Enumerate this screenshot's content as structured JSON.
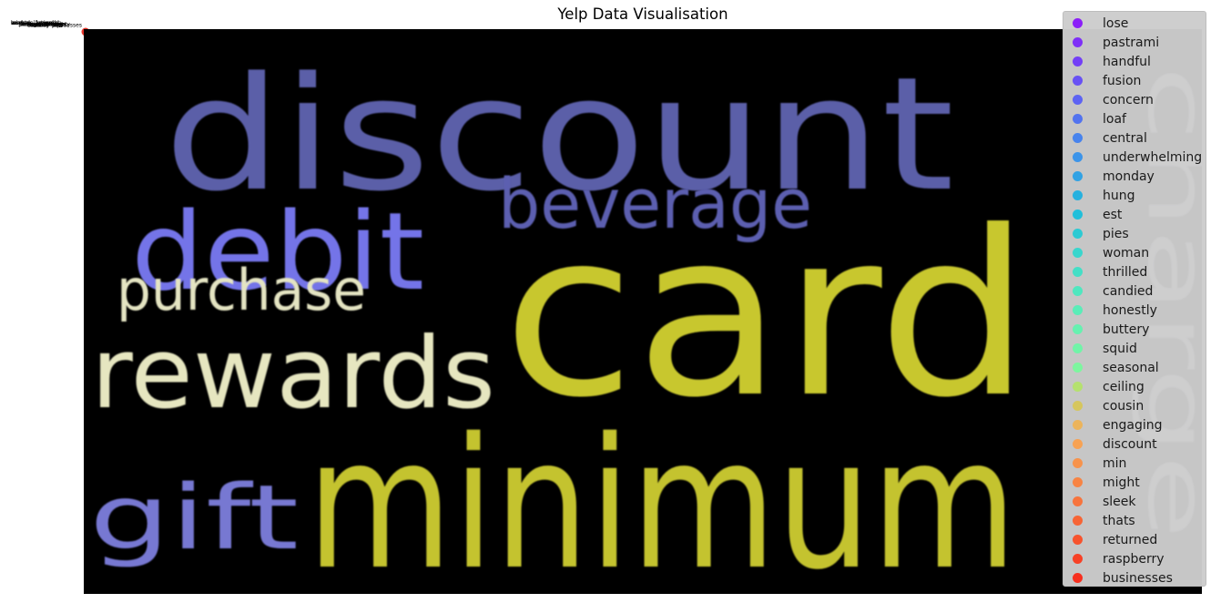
{
  "chart_data": [
    {
      "type": "wordcloud",
      "title": "Yelp Data Visualisation",
      "background": "#000000",
      "words": [
        {
          "text": "discount",
          "color": "#5b5fa8"
        },
        {
          "text": "card",
          "color": "#c8c72e"
        },
        {
          "text": "minimum",
          "color": "#c4c32f"
        },
        {
          "text": "debit",
          "color": "#7474e8"
        },
        {
          "text": "beverage",
          "color": "#5c5fb0"
        },
        {
          "text": "purchase",
          "color": "#e4e4c2"
        },
        {
          "text": "rewards",
          "color": "#e6e6c0"
        },
        {
          "text": "gift",
          "color": "#7778d2"
        },
        {
          "text": "charge",
          "color": "#e4e4f0"
        }
      ]
    },
    {
      "type": "scatter",
      "marker_color": "#e8342a",
      "legend_location": "upper right",
      "legend": [
        {
          "label": "lose",
          "color": "#7f00ff"
        },
        {
          "label": "pastrami",
          "color": "#7114ff"
        },
        {
          "label": "handful",
          "color": "#6427fe"
        },
        {
          "label": "fusion",
          "color": "#573cfc"
        },
        {
          "label": "concern",
          "color": "#4a51fa"
        },
        {
          "label": "loaf",
          "color": "#3d64f6"
        },
        {
          "label": "central",
          "color": "#3077f3"
        },
        {
          "label": "underwhelming",
          "color": "#238bee"
        },
        {
          "label": "monday",
          "color": "#169be9"
        },
        {
          "label": "hung",
          "color": "#09ade3"
        },
        {
          "label": "est",
          "color": "#04bddd"
        },
        {
          "label": "pies",
          "color": "#11cad5"
        },
        {
          "label": "woman",
          "color": "#20d8ce"
        },
        {
          "label": "thrilled",
          "color": "#2de3c6"
        },
        {
          "label": "candied",
          "color": "#3aecbd"
        },
        {
          "label": "honestly",
          "color": "#47f3b5"
        },
        {
          "label": "buttery",
          "color": "#55f8ab"
        },
        {
          "label": "squid",
          "color": "#62fca2"
        },
        {
          "label": "seasonal",
          "color": "#70fe98"
        },
        {
          "label": "ceiling",
          "color": "#b2e55f"
        },
        {
          "label": "cousin",
          "color": "#d8c64a"
        },
        {
          "label": "engaging",
          "color": "#f2b048"
        },
        {
          "label": "discount",
          "color": "#ff9b3e"
        },
        {
          "label": "min",
          "color": "#ff8a36"
        },
        {
          "label": "might",
          "color": "#ff782d"
        },
        {
          "label": "sleek",
          "color": "#ff6524"
        },
        {
          "label": "thats",
          "color": "#ff521b"
        },
        {
          "label": "returned",
          "color": "#ff3e12"
        },
        {
          "label": "raspberry",
          "color": "#ff2909"
        },
        {
          "label": "businesses",
          "color": "#ff1400"
        }
      ]
    }
  ]
}
